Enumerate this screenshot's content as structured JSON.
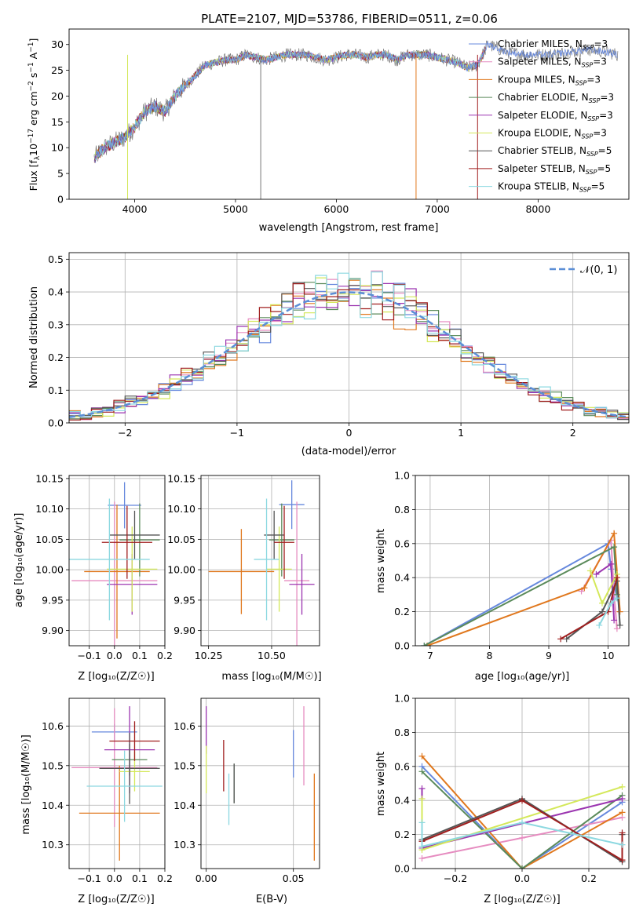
{
  "figure_title": "PLATE=2107, MJD=53786, FIBERID=0511, z=0.06",
  "legend_models": [
    "Chabrier MILES",
    "Salpeter MILES",
    "Kroupa MILES",
    "Chabrier ELODIE",
    "Salpeter ELODIE",
    "Kroupa ELODIE",
    "Chabrier STELIB",
    "Salpeter STELIB",
    "Kroupa STELIB"
  ],
  "legend_nssp": [
    "3",
    "3",
    "3",
    "3",
    "3",
    "3",
    "5",
    "5",
    "5"
  ],
  "model_colors": [
    "#6688dd",
    "#e68cc0",
    "#e0781e",
    "#5a8a5a",
    "#9b35b0",
    "#d4e85a",
    "#555555",
    "#a01e1e",
    "#8cd8e0"
  ],
  "chart_data": [
    {
      "panel": "spectrum",
      "type": "line",
      "xlabel": "wavelength [Angstrom, rest frame]",
      "ylabel_main": "Flux [f",
      "ylabel_sub1": "λ",
      "ylabel_mid": "10",
      "ylabel_sup1": "−17",
      "ylabel_mid2": " erg cm",
      "ylabel_sup2": "−2",
      "ylabel_mid3": " s",
      "ylabel_sup3": "−1",
      "ylabel_mid4": " A",
      "ylabel_sup4": "−1",
      "ylabel_end": "]",
      "xlim": [
        3350,
        8900
      ],
      "ylim": [
        0,
        33
      ],
      "xticks": [
        4000,
        5000,
        6000,
        7000,
        8000
      ],
      "yticks": [
        0,
        5,
        10,
        15,
        20,
        25,
        30
      ],
      "continuum": [
        [
          3600,
          8
        ],
        [
          3700,
          10
        ],
        [
          3800,
          11
        ],
        [
          3900,
          12
        ],
        [
          4000,
          14
        ],
        [
          4100,
          17
        ],
        [
          4200,
          18
        ],
        [
          4300,
          17
        ],
        [
          4400,
          20
        ],
        [
          4500,
          22
        ],
        [
          4600,
          24
        ],
        [
          4700,
          26
        ],
        [
          4800,
          26.5
        ],
        [
          4900,
          27
        ],
        [
          5000,
          27
        ],
        [
          5100,
          28
        ],
        [
          5200,
          27.5
        ],
        [
          5300,
          27
        ],
        [
          5400,
          27.5
        ],
        [
          5500,
          28
        ],
        [
          5600,
          28
        ],
        [
          5700,
          28
        ],
        [
          5800,
          27.5
        ],
        [
          5900,
          27
        ],
        [
          6000,
          27.5
        ],
        [
          6100,
          28
        ],
        [
          6200,
          28
        ],
        [
          6300,
          27.5
        ],
        [
          6400,
          28
        ],
        [
          6500,
          28
        ],
        [
          6600,
          27
        ],
        [
          6700,
          28
        ],
        [
          6800,
          28
        ],
        [
          6900,
          28
        ],
        [
          7000,
          27.5
        ],
        [
          7100,
          27
        ],
        [
          7200,
          26.5
        ],
        [
          7300,
          25.5
        ],
        [
          7400,
          26
        ],
        [
          7500,
          30
        ],
        [
          7700,
          28.5
        ],
        [
          7900,
          28
        ],
        [
          8100,
          28
        ],
        [
          8300,
          28.5
        ],
        [
          8500,
          29
        ],
        [
          8700,
          28.5
        ],
        [
          8790,
          28
        ]
      ]
    },
    {
      "panel": "residuals",
      "type": "line",
      "xlabel": "(data-model)/error",
      "ylabel": "Normed distribution",
      "legend_label": "𝒩(0, 1)",
      "xlim": [
        -2.5,
        2.5
      ],
      "ylim": [
        0,
        0.52
      ],
      "xticks": [
        -2,
        -1,
        0,
        1,
        2
      ],
      "yticks": [
        0.0,
        0.1,
        0.2,
        0.3,
        0.4,
        0.5
      ],
      "bin_width": 0.1
    },
    {
      "panel": "age-vs-Z",
      "type": "scatter",
      "xlabel": "Z [log₁₀(Z/Z☉)]",
      "ylabel": "age  [log₁₀(age/yr)]",
      "xlim": [
        -0.18,
        0.2
      ],
      "ylim": [
        9.875,
        10.155
      ],
      "xticks": [
        -0.1,
        0.0,
        0.1,
        0.2
      ],
      "yticks": [
        9.9,
        9.95,
        10.0,
        10.05,
        10.1,
        10.15
      ],
      "points": [
        {
          "x": 0.04,
          "y": 10.106,
          "xerr": 0.066,
          "yerr": 0.038
        },
        {
          "x": 0.0,
          "y": 9.982,
          "xerr": 0.17,
          "yerr": 0.13
        },
        {
          "x": 0.01,
          "y": 9.997,
          "xerr": 0.13,
          "yerr": 0.11
        },
        {
          "x": 0.1,
          "y": 10.049,
          "xerr": 0.08,
          "yerr": 0.06
        },
        {
          "x": 0.07,
          "y": 9.976,
          "xerr": 0.1,
          "yerr": 0.05
        },
        {
          "x": 0.07,
          "y": 10.001,
          "xerr": 0.1,
          "yerr": 0.07
        },
        {
          "x": 0.08,
          "y": 10.057,
          "xerr": 0.1,
          "yerr": 0.04
        },
        {
          "x": 0.05,
          "y": 10.045,
          "xerr": 0.1,
          "yerr": 0.06
        },
        {
          "x": -0.02,
          "y": 10.017,
          "xerr": 0.16,
          "yerr": 0.1
        }
      ]
    },
    {
      "panel": "age-vs-mass",
      "type": "scatter",
      "xlabel": "mass [log₁₀(M/M☉)]",
      "xlim": [
        10.22,
        10.69
      ],
      "ylim": [
        9.875,
        10.155
      ],
      "xticks": [
        10.25,
        10.5
      ],
      "yticks": [
        9.9,
        9.95,
        10.0,
        10.05,
        10.1,
        10.15
      ],
      "points": [
        {
          "x": 10.58,
          "y": 10.107,
          "xerr": 0.05,
          "yerr": 0.04
        },
        {
          "x": 10.6,
          "y": 9.982,
          "xerr": 0.05,
          "yerr": 0.13
        },
        {
          "x": 10.38,
          "y": 9.997,
          "xerr": 0.13,
          "yerr": 0.07
        },
        {
          "x": 10.54,
          "y": 10.049,
          "xerr": 0.05,
          "yerr": 0.06
        },
        {
          "x": 10.62,
          "y": 9.976,
          "xerr": 0.05,
          "yerr": 0.05
        },
        {
          "x": 10.53,
          "y": 10.001,
          "xerr": 0.05,
          "yerr": 0.07
        },
        {
          "x": 10.51,
          "y": 10.057,
          "xerr": 0.04,
          "yerr": 0.04
        },
        {
          "x": 10.55,
          "y": 10.045,
          "xerr": 0.04,
          "yerr": 0.06
        },
        {
          "x": 10.48,
          "y": 10.017,
          "xerr": 0.05,
          "yerr": 0.1
        }
      ]
    },
    {
      "panel": "weight-vs-age",
      "type": "line",
      "xlabel": "age  [log₁₀(age/yr)]",
      "ylabel": "mass weight",
      "xlim": [
        6.75,
        10.35
      ],
      "ylim": [
        0,
        1.0
      ],
      "xticks": [
        7,
        8,
        9,
        10
      ],
      "yticks": [
        0.0,
        0.2,
        0.4,
        0.6,
        0.8,
        1.0
      ],
      "series": [
        [
          [
            6.9,
            0.0
          ],
          [
            10.0,
            0.6
          ],
          [
            10.05,
            0.45
          ],
          [
            10.15,
            0.28
          ]
        ],
        [
          [
            9.55,
            0.32
          ],
          [
            10.05,
            0.62
          ],
          [
            10.1,
            0.3
          ],
          [
            10.15,
            0.1
          ]
        ],
        [
          [
            6.95,
            0.0
          ],
          [
            9.6,
            0.34
          ],
          [
            10.1,
            0.66
          ],
          [
            10.2,
            0.2
          ]
        ],
        [
          [
            6.9,
            0.0
          ],
          [
            10.1,
            0.58
          ],
          [
            10.15,
            0.3
          ]
        ],
        [
          [
            9.8,
            0.42
          ],
          [
            10.05,
            0.48
          ],
          [
            10.1,
            0.15
          ]
        ],
        [
          [
            9.7,
            0.44
          ],
          [
            9.9,
            0.25
          ],
          [
            10.15,
            0.42
          ]
        ],
        [
          [
            9.3,
            0.04
          ],
          [
            9.9,
            0.2
          ],
          [
            10.15,
            0.38
          ],
          [
            10.2,
            0.12
          ]
        ],
        [
          [
            9.2,
            0.04
          ],
          [
            10.0,
            0.2
          ],
          [
            10.15,
            0.4
          ]
        ],
        [
          [
            9.85,
            0.12
          ],
          [
            10.05,
            0.25
          ],
          [
            10.15,
            0.28
          ]
        ]
      ]
    },
    {
      "panel": "mass-vs-Z",
      "type": "scatter",
      "xlabel": "Z [log₁₀(Z/Z☉)]",
      "ylabel": "mass [log₁₀(M/M☉)]",
      "xlim": [
        -0.18,
        0.2
      ],
      "ylim": [
        10.24,
        10.67
      ],
      "xticks": [
        -0.1,
        0.0,
        0.1,
        0.2
      ],
      "yticks": [
        10.3,
        10.4,
        10.5,
        10.6
      ],
      "points": [
        {
          "x": 0.0,
          "y": 10.585,
          "xerr": 0.09,
          "yerr": 0.02
        },
        {
          "x": 0.0,
          "y": 10.495,
          "xerr": 0.17,
          "yerr": 0.15
        },
        {
          "x": 0.02,
          "y": 10.38,
          "xerr": 0.16,
          "yerr": 0.12
        },
        {
          "x": 0.06,
          "y": 10.515,
          "xerr": 0.07,
          "yerr": 0.04
        },
        {
          "x": 0.06,
          "y": 10.54,
          "xerr": 0.1,
          "yerr": 0.11
        },
        {
          "x": 0.08,
          "y": 10.485,
          "xerr": 0.06,
          "yerr": 0.05
        },
        {
          "x": 0.06,
          "y": 10.493,
          "xerr": 0.12,
          "yerr": 0.09
        },
        {
          "x": 0.08,
          "y": 10.562,
          "xerr": 0.1,
          "yerr": 0.05
        },
        {
          "x": 0.04,
          "y": 10.448,
          "xerr": 0.15,
          "yerr": 0.09
        }
      ]
    },
    {
      "panel": "mass-vs-EBV",
      "type": "scatter",
      "xlabel": "E(B-V)",
      "xlim": [
        -0.003,
        0.065
      ],
      "ylim": [
        10.24,
        10.67
      ],
      "xticks": [
        0.0,
        0.05
      ],
      "yticks": [
        10.3,
        10.4,
        10.5,
        10.6
      ],
      "points": [
        {
          "x": 0.05,
          "y": 10.53,
          "yerr": 0.06
        },
        {
          "x": 0.056,
          "y": 10.55,
          "yerr": 0.1
        },
        {
          "x": 0.062,
          "y": 10.37,
          "yerr": 0.11
        },
        {
          "x": 0.016,
          "y": 10.455,
          "yerr": 0.05
        },
        {
          "x": 0.0,
          "y": 10.59,
          "yerr": 0.06
        },
        {
          "x": 0.0,
          "y": 10.49,
          "yerr": 0.06
        },
        {
          "x": 0.016,
          "y": 10.455,
          "yerr": 0.05
        },
        {
          "x": 0.01,
          "y": 10.5,
          "yerr": 0.065
        },
        {
          "x": 0.013,
          "y": 10.415,
          "yerr": 0.065
        }
      ]
    },
    {
      "panel": "weight-vs-Z",
      "type": "line",
      "xlabel": "Z [log₁₀(Z/Z☉)]",
      "ylabel": "mass weight",
      "xlim": [
        -0.32,
        0.32
      ],
      "ylim": [
        0,
        1.0
      ],
      "xticks": [
        -0.2,
        0.0,
        0.2
      ],
      "yticks": [
        0.0,
        0.2,
        0.4,
        0.6,
        0.8,
        1.0
      ],
      "series": [
        [
          [
            -0.3,
            0.6
          ],
          [
            0.0,
            0.0
          ],
          [
            0.3,
            0.39
          ]
        ],
        [
          [
            -0.3,
            0.06
          ],
          [
            0.0,
            0.18
          ],
          [
            0.3,
            0.3
          ]
        ],
        [
          [
            -0.3,
            0.66
          ],
          [
            0.0,
            0.0
          ],
          [
            0.3,
            0.33
          ]
        ],
        [
          [
            -0.3,
            0.57
          ],
          [
            0.0,
            0.0
          ],
          [
            0.3,
            0.43
          ]
        ],
        [
          [
            -0.3,
            0.47
          ],
          [
            -0.3,
            0.12
          ],
          [
            0.3,
            0.41
          ]
        ],
        [
          [
            -0.3,
            0.41
          ],
          [
            -0.3,
            0.11
          ],
          [
            0.3,
            0.48
          ]
        ],
        [
          [
            -0.3,
            0.17
          ],
          [
            0.0,
            0.41
          ],
          [
            0.3,
            0.04
          ],
          [
            0.3,
            0.2
          ]
        ],
        [
          [
            -0.3,
            0.16
          ],
          [
            0.0,
            0.4
          ],
          [
            0.3,
            0.05
          ],
          [
            0.3,
            0.21
          ]
        ],
        [
          [
            -0.3,
            0.27
          ],
          [
            -0.3,
            0.13
          ],
          [
            0.0,
            0.27
          ],
          [
            0.3,
            0.14
          ]
        ]
      ]
    }
  ]
}
